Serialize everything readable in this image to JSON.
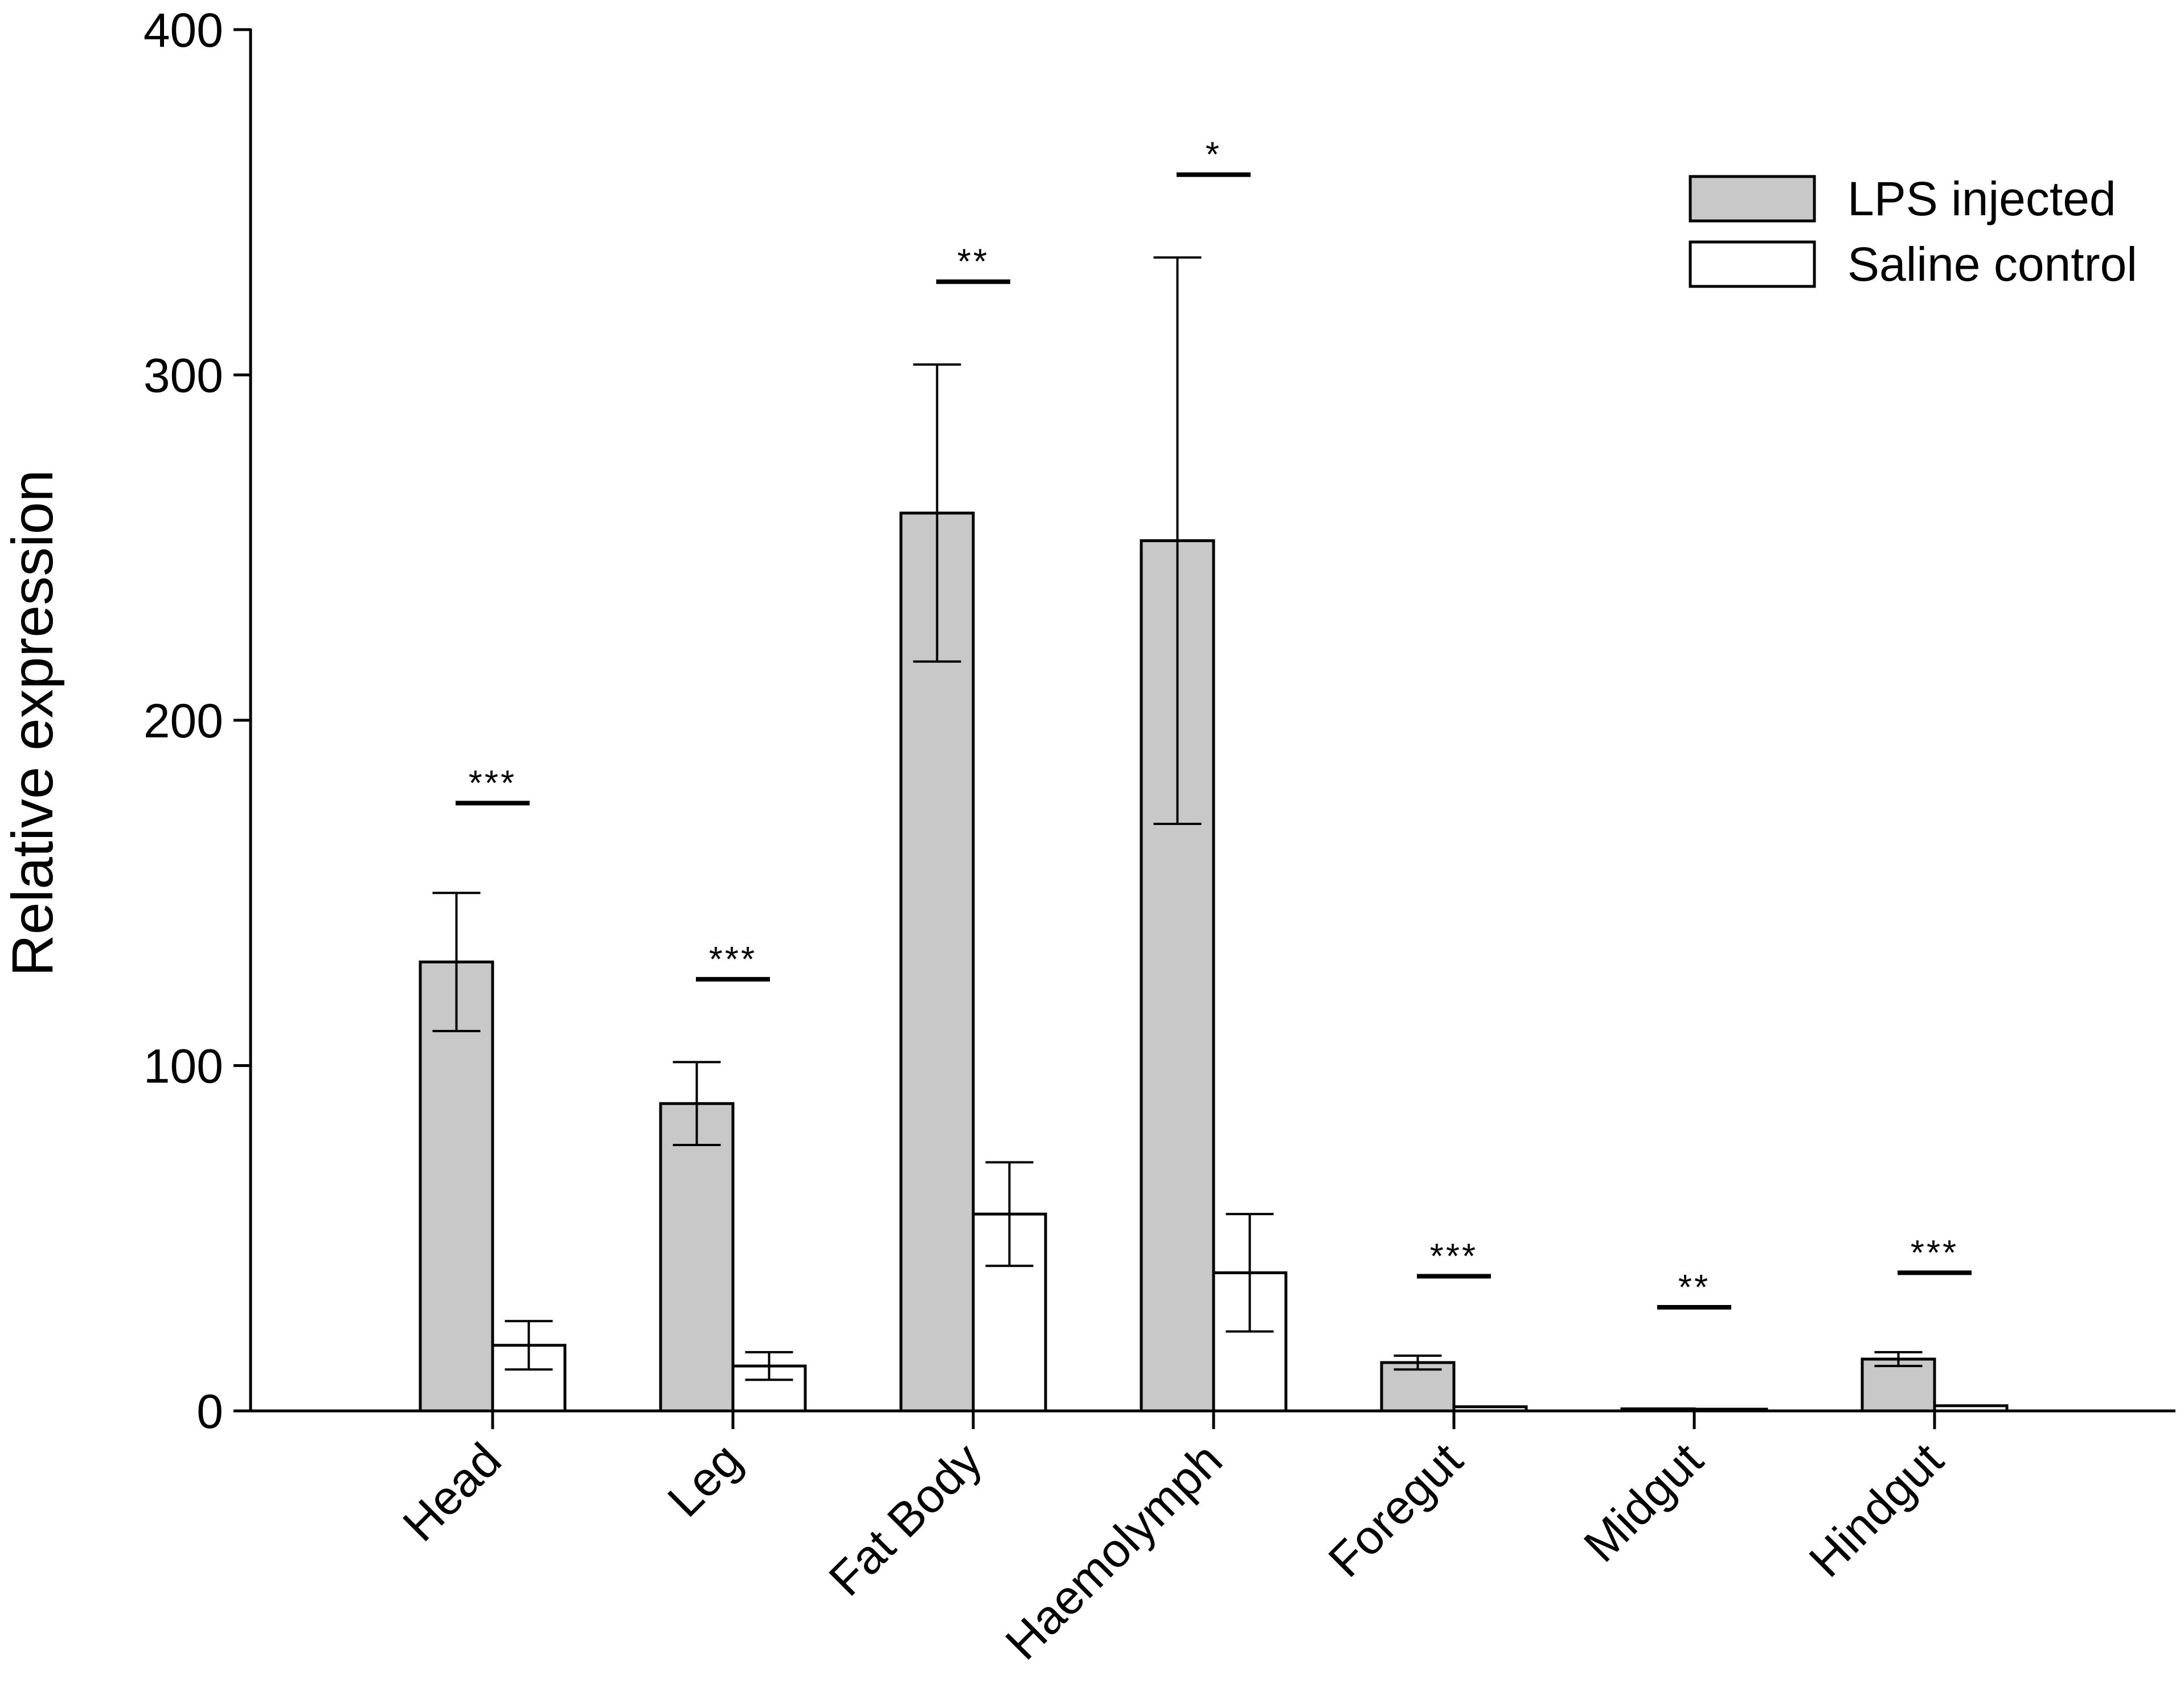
{
  "chart_data": {
    "type": "bar",
    "title": "",
    "xlabel": "",
    "ylabel": "Relative expression",
    "ylim": [
      0,
      400
    ],
    "yticks": [
      0,
      100,
      200,
      300,
      400
    ],
    "grid": false,
    "legend_position": "top-right",
    "categories": [
      "Head",
      "Leg",
      "Fat Body",
      "Haemolymph",
      "Foregut",
      "Midgut",
      "Hindgut"
    ],
    "series": [
      {
        "name": "LPS injected",
        "color": "#c8c8c8",
        "values": [
          130,
          89,
          260,
          252,
          14,
          0.6,
          15
        ],
        "error": [
          20,
          12,
          43,
          82,
          2,
          0.3,
          2
        ]
      },
      {
        "name": "Saline control",
        "color": "#ffffff",
        "values": [
          19,
          13,
          57,
          40,
          1.2,
          0.5,
          1.5
        ],
        "error": [
          7,
          4,
          15,
          17,
          0.3,
          0.2,
          0.3
        ]
      }
    ],
    "significance": [
      {
        "category": "Head",
        "label": "***",
        "y": 176
      },
      {
        "category": "Leg",
        "label": "***",
        "y": 125
      },
      {
        "category": "Fat Body",
        "label": "**",
        "y": 327
      },
      {
        "category": "Haemolymph",
        "label": "*",
        "y": 358
      },
      {
        "category": "Foregut",
        "label": "***",
        "y": 39
      },
      {
        "category": "Midgut",
        "label": "**",
        "y": 30
      },
      {
        "category": "Hindgut",
        "label": "***",
        "y": 40
      }
    ]
  }
}
